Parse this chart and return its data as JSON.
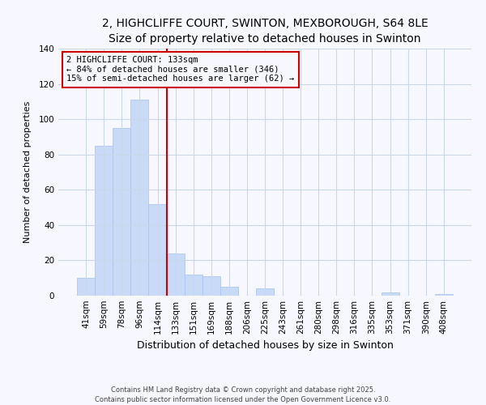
{
  "title": "2, HIGHCLIFFE COURT, SWINTON, MEXBOROUGH, S64 8LE",
  "subtitle": "Size of property relative to detached houses in Swinton",
  "xlabel": "Distribution of detached houses by size in Swinton",
  "ylabel": "Number of detached properties",
  "bar_labels": [
    "41sqm",
    "59sqm",
    "78sqm",
    "96sqm",
    "114sqm",
    "133sqm",
    "151sqm",
    "169sqm",
    "188sqm",
    "206sqm",
    "225sqm",
    "243sqm",
    "261sqm",
    "280sqm",
    "298sqm",
    "316sqm",
    "335sqm",
    "353sqm",
    "371sqm",
    "390sqm",
    "408sqm"
  ],
  "bar_values": [
    10,
    85,
    95,
    111,
    52,
    24,
    12,
    11,
    5,
    0,
    4,
    0,
    0,
    0,
    0,
    0,
    0,
    2,
    0,
    0,
    1
  ],
  "bar_color": "#c9daf8",
  "bar_edge_color": "#a4c2f4",
  "vline_x_idx": 5,
  "vline_color": "#cc0000",
  "annotation_line1": "2 HIGHCLIFFE COURT: 133sqm",
  "annotation_line2": "← 84% of detached houses are smaller (346)",
  "annotation_line3": "15% of semi-detached houses are larger (62) →",
  "annotation_box_color": "#cc0000",
  "ylim": [
    0,
    140
  ],
  "yticks": [
    0,
    20,
    40,
    60,
    80,
    100,
    120,
    140
  ],
  "footer1": "Contains HM Land Registry data © Crown copyright and database right 2025.",
  "footer2": "Contains public sector information licensed under the Open Government Licence v3.0.",
  "bg_color": "#f7f7ff",
  "grid_color": "#c8d8e8",
  "title_fontsize": 10,
  "subtitle_fontsize": 9,
  "xlabel_fontsize": 9,
  "ylabel_fontsize": 8,
  "tick_fontsize": 7.5,
  "annot_fontsize": 7.5,
  "footer_fontsize": 6.0
}
